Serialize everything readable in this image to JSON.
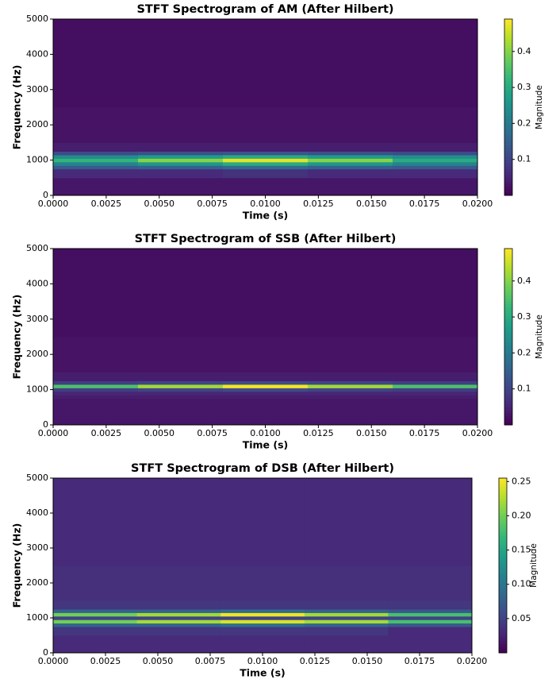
{
  "chart_data": [
    {
      "type": "heatmap",
      "title": "STFT Spectrogram of AM (After Hilbert)",
      "x_label": "Time (s)",
      "y_label": "Frequency (Hz)",
      "colorbar_label": "Magnitude",
      "colormap": "viridis",
      "xlim": [
        0,
        0.02
      ],
      "xticks": [
        {
          "value": 0,
          "label": "0.0000"
        },
        {
          "value": 0.0025,
          "label": "0.0025"
        },
        {
          "value": 0.005,
          "label": "0.0050"
        },
        {
          "value": 0.0075,
          "label": "0.0075"
        },
        {
          "value": 0.01,
          "label": "0.0100"
        },
        {
          "value": 0.0125,
          "label": "0.0125"
        },
        {
          "value": 0.015,
          "label": "0.0150"
        },
        {
          "value": 0.0175,
          "label": "0.0175"
        },
        {
          "value": 0.02,
          "label": "0.0200"
        }
      ],
      "ylim": [
        0,
        5000
      ],
      "yticks": [
        0,
        1000,
        2000,
        3000,
        4000,
        5000
      ],
      "clim": [
        0,
        0.49
      ],
      "cticks": [
        0.1,
        0.2,
        0.3,
        0.4
      ],
      "x_bins": [
        0,
        0.004,
        0.008,
        0.012,
        0.016,
        0.02
      ],
      "y_bins": [
        0,
        500,
        750,
        850,
        950,
        1050,
        1150,
        1250,
        1500,
        2500,
        5000
      ],
      "values": [
        [
          0.03,
          0.03,
          0.03,
          0.03,
          0.03
        ],
        [
          0.06,
          0.06,
          0.07,
          0.06,
          0.06
        ],
        [
          0.14,
          0.15,
          0.17,
          0.15,
          0.14
        ],
        [
          0.22,
          0.26,
          0.3,
          0.26,
          0.22
        ],
        [
          0.32,
          0.4,
          0.47,
          0.4,
          0.3
        ],
        [
          0.24,
          0.27,
          0.3,
          0.27,
          0.24
        ],
        [
          0.11,
          0.12,
          0.13,
          0.12,
          0.11
        ],
        [
          0.04,
          0.04,
          0.04,
          0.04,
          0.04
        ],
        [
          0.025,
          0.025,
          0.025,
          0.025,
          0.025
        ],
        [
          0.02,
          0.02,
          0.02,
          0.02,
          0.02
        ]
      ]
    },
    {
      "type": "heatmap",
      "title": "STFT Spectrogram of SSB (After Hilbert)",
      "x_label": "Time (s)",
      "y_label": "Frequency (Hz)",
      "colorbar_label": "Magnitude",
      "colormap": "viridis",
      "xlim": [
        0,
        0.02
      ],
      "xticks": [
        {
          "value": 0,
          "label": "0.0000"
        },
        {
          "value": 0.0025,
          "label": "0.0025"
        },
        {
          "value": 0.005,
          "label": "0.0050"
        },
        {
          "value": 0.0075,
          "label": "0.0075"
        },
        {
          "value": 0.01,
          "label": "0.0100"
        },
        {
          "value": 0.0125,
          "label": "0.0125"
        },
        {
          "value": 0.015,
          "label": "0.0150"
        },
        {
          "value": 0.0175,
          "label": "0.0175"
        },
        {
          "value": 0.02,
          "label": "0.0200"
        }
      ],
      "ylim": [
        0,
        5000
      ],
      "yticks": [
        0,
        1000,
        2000,
        3000,
        4000,
        5000
      ],
      "clim": [
        0,
        0.49
      ],
      "cticks": [
        0.1,
        0.2,
        0.3,
        0.4
      ],
      "x_bins": [
        0,
        0.004,
        0.008,
        0.012,
        0.016,
        0.02
      ],
      "y_bins": [
        0,
        500,
        750,
        850,
        950,
        1050,
        1150,
        1250,
        1500,
        2500,
        5000
      ],
      "values": [
        [
          0.03,
          0.03,
          0.03,
          0.03,
          0.03
        ],
        [
          0.03,
          0.03,
          0.03,
          0.03,
          0.03
        ],
        [
          0.04,
          0.04,
          0.04,
          0.04,
          0.04
        ],
        [
          0.05,
          0.05,
          0.05,
          0.05,
          0.05
        ],
        [
          0.09,
          0.1,
          0.11,
          0.1,
          0.09
        ],
        [
          0.35,
          0.42,
          0.48,
          0.42,
          0.35
        ],
        [
          0.09,
          0.1,
          0.11,
          0.1,
          0.09
        ],
        [
          0.04,
          0.04,
          0.04,
          0.04,
          0.04
        ],
        [
          0.025,
          0.025,
          0.025,
          0.025,
          0.025
        ],
        [
          0.02,
          0.02,
          0.02,
          0.02,
          0.02
        ]
      ]
    },
    {
      "type": "heatmap",
      "title": "STFT Spectrogram of DSB (After Hilbert)",
      "x_label": "Time (s)",
      "y_label": "Frequency (Hz)",
      "colorbar_label": "Magnitude",
      "colormap": "viridis",
      "xlim": [
        0,
        0.02
      ],
      "xticks": [
        {
          "value": 0,
          "label": "0.0000"
        },
        {
          "value": 0.0025,
          "label": "0.0025"
        },
        {
          "value": 0.005,
          "label": "0.0050"
        },
        {
          "value": 0.0075,
          "label": "0.0075"
        },
        {
          "value": 0.01,
          "label": "0.0100"
        },
        {
          "value": 0.0125,
          "label": "0.0125"
        },
        {
          "value": 0.015,
          "label": "0.0150"
        },
        {
          "value": 0.0175,
          "label": "0.0175"
        },
        {
          "value": 0.02,
          "label": "0.0200"
        }
      ],
      "ylim": [
        0,
        5000
      ],
      "yticks": [
        0,
        1000,
        2000,
        3000,
        4000,
        5000
      ],
      "clim": [
        0,
        0.255
      ],
      "cticks": [
        0.05,
        {
          "value": 0.1,
          "label": "0.10"
        },
        0.15,
        {
          "value": 0.2,
          "label": "0.20"
        },
        0.25
      ],
      "x_bins": [
        0,
        0.004,
        0.008,
        0.012,
        0.016,
        0.02
      ],
      "y_bins": [
        0,
        500,
        750,
        850,
        950,
        1050,
        1150,
        1250,
        1500,
        2500,
        5000
      ],
      "values": [
        [
          0.03,
          0.03,
          0.03,
          0.03,
          0.03
        ],
        [
          0.04,
          0.04,
          0.04,
          0.04,
          0.03
        ],
        [
          0.08,
          0.08,
          0.09,
          0.08,
          0.07
        ],
        [
          0.2,
          0.22,
          0.24,
          0.22,
          0.18
        ],
        [
          0.05,
          0.05,
          0.05,
          0.05,
          0.05
        ],
        [
          0.2,
          0.22,
          0.25,
          0.22,
          0.18
        ],
        [
          0.08,
          0.08,
          0.09,
          0.08,
          0.07
        ],
        [
          0.04,
          0.04,
          0.04,
          0.04,
          0.04
        ],
        [
          0.035,
          0.035,
          0.035,
          0.035,
          0.035
        ],
        [
          0.03,
          0.03,
          0.03,
          0.03,
          0.03
        ]
      ]
    }
  ]
}
